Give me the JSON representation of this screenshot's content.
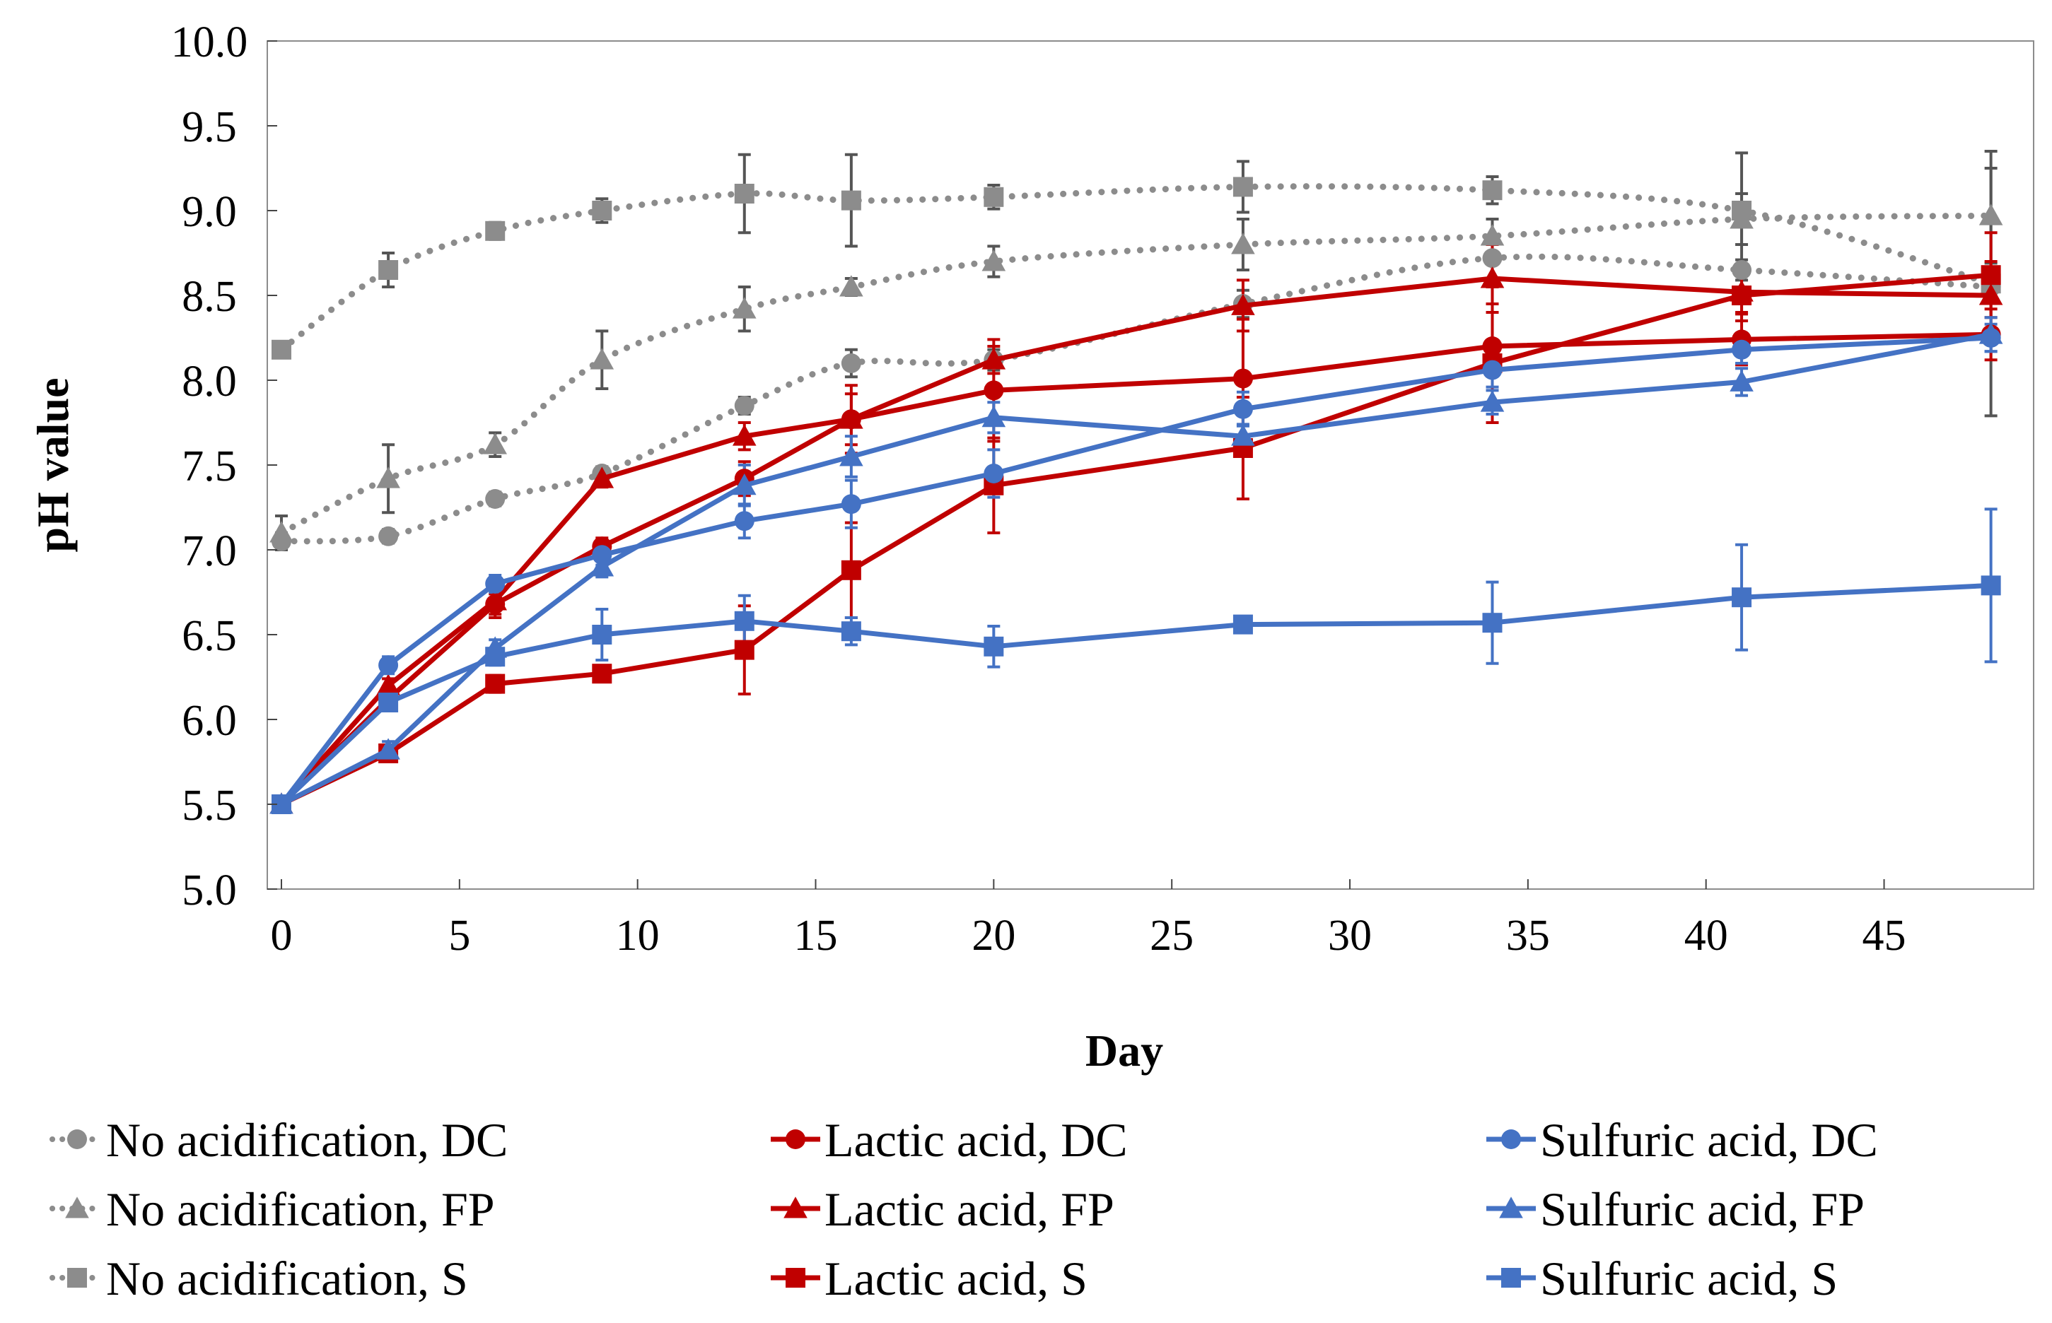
{
  "chart_data": {
    "type": "line",
    "title": "",
    "xlabel": "Day",
    "ylabel": "pH value",
    "xlim": [
      0,
      49
    ],
    "ylim": [
      5.0,
      10.0
    ],
    "x_ticks": [
      0,
      5,
      10,
      15,
      20,
      25,
      30,
      35,
      40,
      45
    ],
    "x_tick_labels": [
      "0",
      "5",
      "10",
      "15",
      "20",
      "25",
      "30",
      "35",
      "40",
      "45"
    ],
    "y_ticks": [
      5.0,
      5.5,
      6.0,
      6.5,
      7.0,
      7.5,
      8.0,
      8.5,
      9.0,
      9.5,
      10.0
    ],
    "y_tick_labels": [
      "5.0",
      "5.5",
      "6.0",
      "6.5",
      "7.0",
      "7.5",
      "8.0",
      "8.5",
      "9.0",
      "9.5",
      "10.0"
    ],
    "grid": false,
    "legend_position": "bottom",
    "colors": {
      "gray": "#8c8c8c",
      "gray_dark": "#555555",
      "red": "#c00000",
      "blue": "#4472c4"
    },
    "series": [
      {
        "name": "No acidification, DC",
        "color": "#8c8c8c",
        "dash": "dotted",
        "marker": "circle",
        "x": [
          0,
          3,
          6,
          9,
          13,
          16,
          20,
          27,
          34,
          41,
          48
        ],
        "y": [
          7.05,
          7.08,
          7.3,
          7.45,
          7.85,
          8.1,
          8.12,
          8.45,
          8.72,
          8.65,
          8.55
        ],
        "err": [
          0.05,
          0.04,
          0.04,
          0.04,
          0.05,
          0.08,
          0.06,
          0.08,
          0.12,
          0.06,
          0.06
        ]
      },
      {
        "name": "No acidification, FP",
        "color": "#8c8c8c",
        "dash": "dotted",
        "marker": "triangle",
        "x": [
          0,
          3,
          6,
          9,
          13,
          16,
          20,
          27,
          34,
          41,
          48
        ],
        "y": [
          7.1,
          7.42,
          7.62,
          8.12,
          8.42,
          8.55,
          8.7,
          8.8,
          8.85,
          8.95,
          8.97
        ],
        "err": [
          0.1,
          0.2,
          0.07,
          0.17,
          0.13,
          0.05,
          0.09,
          0.15,
          0.1,
          0.15,
          0.28
        ]
      },
      {
        "name": "No acidification, S",
        "color": "#8c8c8c",
        "dash": "dotted",
        "marker": "square",
        "x": [
          0,
          3,
          6,
          9,
          13,
          16,
          20,
          27,
          34,
          41,
          48
        ],
        "y": [
          8.18,
          8.65,
          8.88,
          9.0,
          9.1,
          9.06,
          9.08,
          9.14,
          9.12,
          9.0,
          8.57
        ],
        "err": [
          0.03,
          0.1,
          0.05,
          0.07,
          0.23,
          0.27,
          0.07,
          0.15,
          0.08,
          0.34,
          0.78
        ]
      },
      {
        "name": "Lactic acid, DC",
        "color": "#c00000",
        "dash": "solid",
        "marker": "circle",
        "x": [
          0,
          3,
          6,
          9,
          13,
          16,
          20,
          27,
          34,
          41,
          48
        ],
        "y": [
          5.5,
          6.12,
          6.68,
          7.02,
          7.42,
          7.77,
          7.94,
          8.01,
          8.2,
          8.24,
          8.27
        ],
        "err": [
          0.03,
          0.04,
          0.06,
          0.05,
          0.1,
          0.2,
          0.3,
          0.35,
          0.35,
          0.15,
          0.15
        ]
      },
      {
        "name": "Lactic acid, FP",
        "color": "#c00000",
        "dash": "solid",
        "marker": "triangle",
        "x": [
          0,
          3,
          6,
          9,
          13,
          16,
          20,
          27,
          34,
          41,
          48
        ],
        "y": [
          5.5,
          6.2,
          6.7,
          7.42,
          7.67,
          7.77,
          8.12,
          8.44,
          8.6,
          8.52,
          8.5
        ],
        "err": [
          0.03,
          0.04,
          0.1,
          0.05,
          0.08,
          0.15,
          0.08,
          0.15,
          0.2,
          0.12,
          0.2
        ]
      },
      {
        "name": "Lactic acid, S",
        "color": "#c00000",
        "dash": "solid",
        "marker": "square",
        "x": [
          0,
          3,
          6,
          9,
          13,
          16,
          20,
          27,
          34,
          41,
          48
        ],
        "y": [
          5.5,
          5.8,
          6.21,
          6.27,
          6.41,
          6.88,
          7.38,
          7.6,
          8.1,
          8.5,
          8.62
        ],
        "err": [
          0.03,
          0.05,
          0.05,
          0.04,
          0.26,
          0.28,
          0.28,
          0.3,
          0.35,
          0.15,
          0.25
        ]
      },
      {
        "name": "Sulfuric acid, DC",
        "color": "#4472c4",
        "dash": "solid",
        "marker": "circle",
        "x": [
          0,
          3,
          6,
          9,
          13,
          16,
          20,
          27,
          34,
          41,
          48
        ],
        "y": [
          5.5,
          6.32,
          6.8,
          6.97,
          7.17,
          7.27,
          7.45,
          7.83,
          8.06,
          8.18,
          8.25
        ],
        "err": [
          0.03,
          0.05,
          0.05,
          0.06,
          0.1,
          0.14,
          0.14,
          0.1,
          0.1,
          0.08,
          0.08
        ]
      },
      {
        "name": "Sulfuric acid, FP",
        "color": "#4472c4",
        "dash": "solid",
        "marker": "triangle",
        "x": [
          0,
          3,
          6,
          9,
          13,
          16,
          20,
          27,
          34,
          41,
          48
        ],
        "y": [
          5.5,
          5.82,
          6.42,
          6.9,
          7.38,
          7.55,
          7.78,
          7.67,
          7.87,
          7.99,
          8.27
        ],
        "err": [
          0.03,
          0.05,
          0.05,
          0.06,
          0.12,
          0.12,
          0.09,
          0.07,
          0.07,
          0.08,
          0.1
        ]
      },
      {
        "name": "Sulfuric acid, S",
        "color": "#4472c4",
        "dash": "solid",
        "marker": "square",
        "x": [
          0,
          3,
          6,
          9,
          13,
          16,
          20,
          27,
          34,
          41,
          48
        ],
        "y": [
          5.5,
          6.1,
          6.37,
          6.5,
          6.58,
          6.52,
          6.43,
          6.56,
          6.57,
          6.72,
          6.79
        ],
        "err": [
          0.03,
          0.05,
          0.05,
          0.15,
          0.15,
          0.08,
          0.12,
          0.04,
          0.24,
          0.31,
          0.45
        ]
      }
    ]
  }
}
